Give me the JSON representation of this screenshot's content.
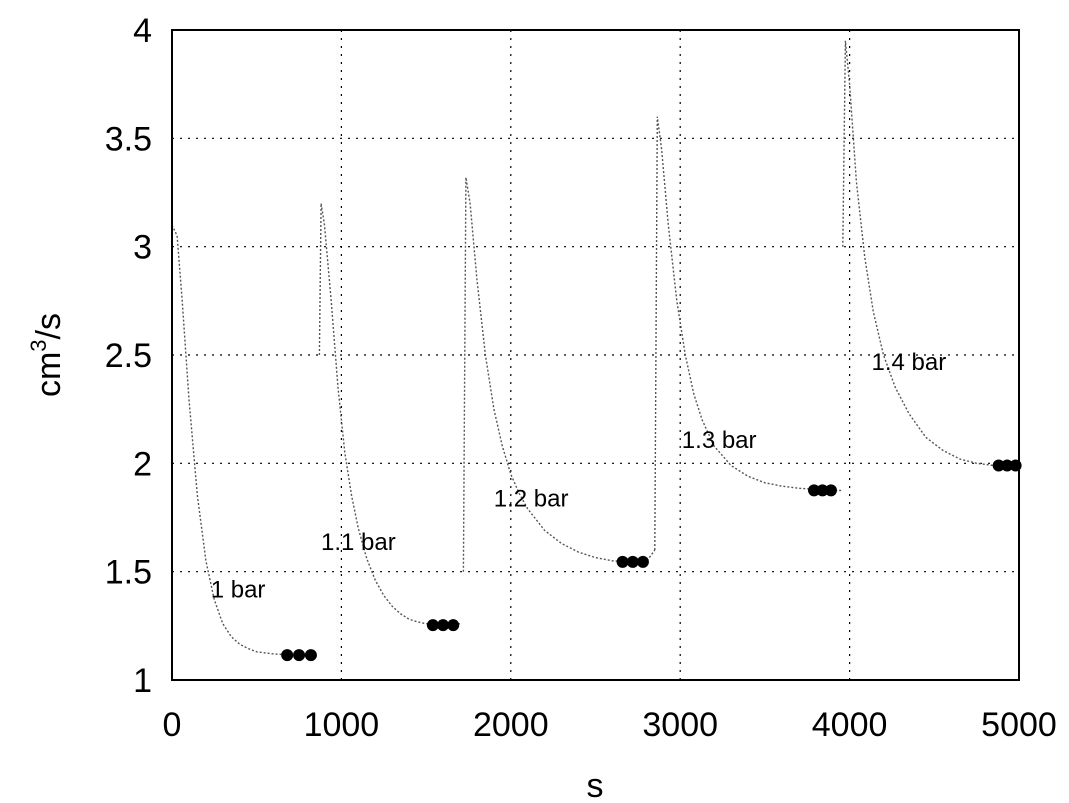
{
  "chart_data": {
    "type": "line",
    "title": "",
    "xlabel": "s",
    "ylabel": "cm³/s",
    "ylabel_base": "cm",
    "ylabel_sup": "3",
    "ylabel_tail": "/s",
    "xlim": [
      0,
      5000
    ],
    "ylim": [
      1,
      4
    ],
    "xticks": [
      0,
      1000,
      2000,
      3000,
      4000,
      5000
    ],
    "xtick_labels": [
      "0",
      "1000",
      "2000",
      "3000",
      "4000",
      "5000"
    ],
    "yticks": [
      1,
      1.5,
      2,
      2.5,
      3,
      3.5,
      4
    ],
    "ytick_labels": [
      "1",
      "1.5",
      "2",
      "2.5",
      "3",
      "3.5",
      "4"
    ],
    "grid": true,
    "series": [
      {
        "name": "1 bar",
        "x": [
          0,
          30,
          60,
          100,
          150,
          200,
          250,
          300,
          350,
          400,
          450,
          500,
          550,
          600,
          650,
          700,
          750,
          800,
          850
        ],
        "y": [
          3.1,
          3.05,
          2.75,
          2.3,
          1.85,
          1.55,
          1.37,
          1.26,
          1.2,
          1.165,
          1.145,
          1.13,
          1.125,
          1.12,
          1.118,
          1.116,
          1.115,
          1.115,
          1.115
        ],
        "markers_x": [
          680,
          750,
          820
        ],
        "markers_y": [
          1.115,
          1.115,
          1.115
        ]
      },
      {
        "name": "1.1 bar",
        "x": [
          870,
          880,
          900,
          940,
          980,
          1020,
          1060,
          1100,
          1150,
          1200,
          1250,
          1300,
          1350,
          1400,
          1450,
          1500,
          1550,
          1600,
          1650,
          1700
        ],
        "y": [
          2.5,
          3.2,
          3.1,
          2.75,
          2.35,
          2.05,
          1.85,
          1.7,
          1.56,
          1.46,
          1.39,
          1.34,
          1.305,
          1.28,
          1.268,
          1.26,
          1.256,
          1.254,
          1.253,
          1.26
        ],
        "markers_x": [
          1540,
          1600,
          1660
        ],
        "markers_y": [
          1.253,
          1.253,
          1.253
        ]
      },
      {
        "name": "1.2 bar",
        "x": [
          1720,
          1735,
          1760,
          1800,
          1850,
          1900,
          1950,
          2000,
          2050,
          2100,
          2200,
          2300,
          2400,
          2500,
          2600,
          2700,
          2800,
          2850
        ],
        "y": [
          1.5,
          3.32,
          3.2,
          2.85,
          2.5,
          2.25,
          2.08,
          1.95,
          1.86,
          1.79,
          1.69,
          1.63,
          1.59,
          1.565,
          1.55,
          1.545,
          1.545,
          1.6
        ],
        "markers_x": [
          2660,
          2720,
          2780
        ],
        "markers_y": [
          1.545,
          1.545,
          1.545
        ]
      },
      {
        "name": "1.3 bar",
        "x": [
          2850,
          2865,
          2890,
          2930,
          2980,
          3030,
          3080,
          3130,
          3200,
          3300,
          3400,
          3500,
          3600,
          3700,
          3800,
          3900,
          3950
        ],
        "y": [
          1.6,
          3.6,
          3.45,
          3.1,
          2.75,
          2.5,
          2.32,
          2.2,
          2.08,
          1.99,
          1.94,
          1.91,
          1.895,
          1.885,
          1.88,
          1.875,
          1.875
        ],
        "markers_x": [
          3790,
          3840,
          3890
        ],
        "markers_y": [
          1.875,
          1.875,
          1.875
        ]
      },
      {
        "name": "1.4 bar",
        "x": [
          3960,
          3975,
          4000,
          4040,
          4090,
          4140,
          4200,
          4270,
          4350,
          4450,
          4550,
          4650,
          4750,
          4850,
          4950,
          5000
        ],
        "y": [
          3.0,
          3.95,
          3.75,
          3.3,
          2.95,
          2.7,
          2.5,
          2.35,
          2.23,
          2.12,
          2.06,
          2.02,
          2.0,
          1.99,
          1.99,
          1.99
        ],
        "markers_x": [
          4880,
          4930,
          4980
        ],
        "markers_y": [
          1.99,
          1.99,
          1.99
        ]
      }
    ],
    "annotations": [
      {
        "text": "1 bar",
        "x": 390,
        "y": 1.38
      },
      {
        "text": "1.1 bar",
        "x": 1100,
        "y": 1.6
      },
      {
        "text": "1.2 bar",
        "x": 2120,
        "y": 1.8
      },
      {
        "text": "1.3 bar",
        "x": 3230,
        "y": 2.07
      },
      {
        "text": "1.4 bar",
        "x": 4350,
        "y": 2.43
      }
    ]
  }
}
